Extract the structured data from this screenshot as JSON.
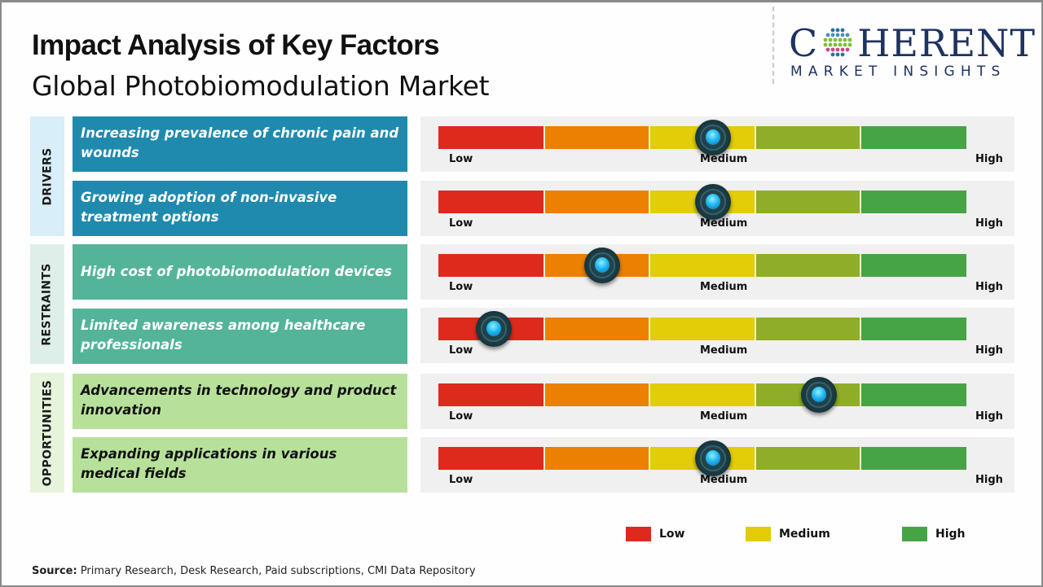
{
  "header": {
    "title": "Impact Analysis of Key Factors",
    "subtitle": "Global Photobiomodulation Market"
  },
  "logo": {
    "word_left": "C",
    "word_right": "HERENT",
    "tagline": "MARKET INSIGHTS",
    "icon": "dotted-globe-icon"
  },
  "gauge_labels": {
    "low": "Low",
    "medium": "Medium",
    "high": "High"
  },
  "segment_colors": [
    "#de2a1c",
    "#ec8003",
    "#e3cc08",
    "#8fad28",
    "#47a445"
  ],
  "categories": [
    {
      "label": "DRIVERS",
      "label_bg": "#d8eef8",
      "box_bg": "#1f8aae",
      "text_color": "#ffffff"
    },
    {
      "label": "RESTRAINTS",
      "label_bg": "#deefea",
      "box_bg": "#53b499",
      "text_color": "#ffffff"
    },
    {
      "label": "OPPORTUNITIES",
      "label_bg": "#e6f4dc",
      "box_bg": "#b7e19a",
      "text_color": "#111111"
    }
  ],
  "chart_data": {
    "type": "gauge",
    "title": "Impact Analysis of Key Factors",
    "subtitle": "Global Photobiomodulation Market",
    "scale": {
      "min_label": "Low",
      "mid_label": "Medium",
      "max_label": "High",
      "range": [
        0,
        1
      ]
    },
    "factors": [
      {
        "category": "DRIVERS",
        "text": "Increasing prevalence of chronic pain and wounds",
        "impact": 0.52
      },
      {
        "category": "DRIVERS",
        "text": "Growing adoption of non-invasive treatment options",
        "impact": 0.52
      },
      {
        "category": "RESTRAINTS",
        "text": "High cost of photobiomodulation devices",
        "impact": 0.31
      },
      {
        "category": "RESTRAINTS",
        "text": "Limited awareness among healthcare professionals",
        "impact": 0.105
      },
      {
        "category": "OPPORTUNITIES",
        "text": "Advancements in technology and product innovation",
        "impact": 0.72
      },
      {
        "category": "OPPORTUNITIES",
        "text": "Expanding applications in various medical fields",
        "impact": 0.52
      }
    ],
    "legend": [
      {
        "label": "Low",
        "color": "#de2a1c"
      },
      {
        "label": "Medium",
        "color": "#e3cc08"
      },
      {
        "label": "High",
        "color": "#47a445"
      }
    ],
    "legend_position": "bottom-right"
  },
  "footer": {
    "source_label": "Source:",
    "source_text": " Primary Research, Desk Research, Paid subscriptions, CMI Data Repository"
  }
}
